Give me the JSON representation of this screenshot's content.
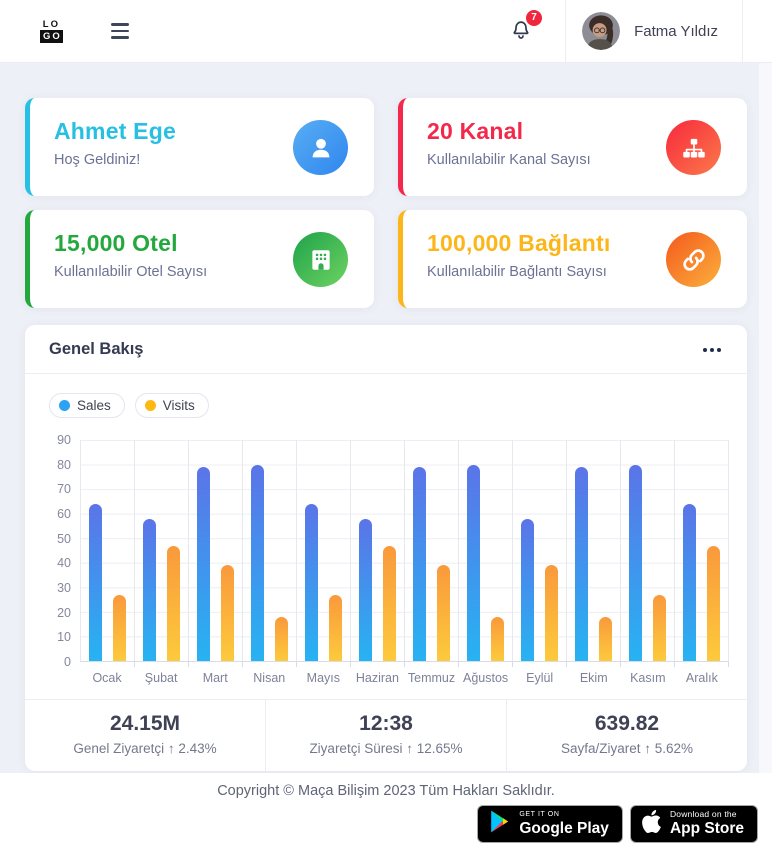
{
  "header": {
    "logo_top": "LO",
    "logo_bottom": "GO",
    "notification_count": "7",
    "user_name": "Fatma Yıldız"
  },
  "cards": {
    "items": [
      {
        "title": "Ahmet Ege",
        "subtitle": "Hoş Geldiniz!",
        "accent": "#27c0e4",
        "icon": "user-icon",
        "icon_gradient": [
          "#58aef3",
          "#2f86ee"
        ]
      },
      {
        "title": "20 Kanal",
        "subtitle": "Kullanılabilir Kanal Sayısı",
        "accent": "#f4284b",
        "icon": "sitemap-icon",
        "icon_gradient": [
          "#f8283d",
          "#fa7a4a"
        ]
      },
      {
        "title": "15,000 Otel",
        "subtitle": "Kullanılabilir Otel Sayısı",
        "accent": "#24a83e",
        "icon": "hotel-icon",
        "icon_gradient": [
          "#1ea24a",
          "#6ed361"
        ]
      },
      {
        "title": "100,000 Bağlantı",
        "subtitle": "Kullanılabilir Bağlantı Sayısı",
        "accent": "#fcb61a",
        "icon": "link-icon",
        "icon_gradient": [
          "#f4591d",
          "#fbb03b"
        ]
      }
    ]
  },
  "overview": {
    "title": "Genel Bakış"
  },
  "chart_data": {
    "type": "bar",
    "title": "Genel Bakış",
    "categories": [
      "Ocak",
      "Şubat",
      "Mart",
      "Nisan",
      "Mayıs",
      "Haziran",
      "Temmuz",
      "Ağustos",
      "Eylül",
      "Ekim",
      "Kasım",
      "Aralık"
    ],
    "series": [
      {
        "name": "Sales",
        "legend_color": "#2ba2f4",
        "bar_gradient": [
          "#5b74e8",
          "#27b3f2"
        ],
        "values": [
          64,
          58,
          79,
          80,
          64,
          58,
          79,
          80,
          58,
          79,
          80,
          64
        ]
      },
      {
        "name": "Visits",
        "legend_color": "#fdb813",
        "bar_gradient": [
          "#f9993c",
          "#fdca3c"
        ],
        "values": [
          27,
          47,
          39,
          18,
          27,
          47,
          39,
          18,
          39,
          18,
          27,
          47
        ]
      }
    ],
    "xlabel": "",
    "ylabel": "",
    "ylim": [
      0,
      90
    ],
    "yticks": [
      0,
      10,
      20,
      30,
      40,
      50,
      60,
      70,
      80,
      90
    ],
    "grid": true,
    "legend_position": "top-left"
  },
  "stats": {
    "items": [
      {
        "value": "24.15M",
        "label": "Genel Ziyaretçi",
        "arrow": "↑",
        "delta": "2.43%"
      },
      {
        "value": "12:38",
        "label": "Ziyaretçi Süresi",
        "arrow": "↑",
        "delta": "12.65%"
      },
      {
        "value": "639.82",
        "label": "Sayfa/Ziyaret",
        "arrow": "↑",
        "delta": "5.62%"
      }
    ]
  },
  "footer": {
    "copyright": "Copyright © Maça Bilişim 2023 Tüm Hakları Saklıdır.",
    "google_play": {
      "tagline": "GET IT ON",
      "name": "Google Play"
    },
    "app_store": {
      "tagline": "Download on the",
      "name": "App Store"
    }
  }
}
